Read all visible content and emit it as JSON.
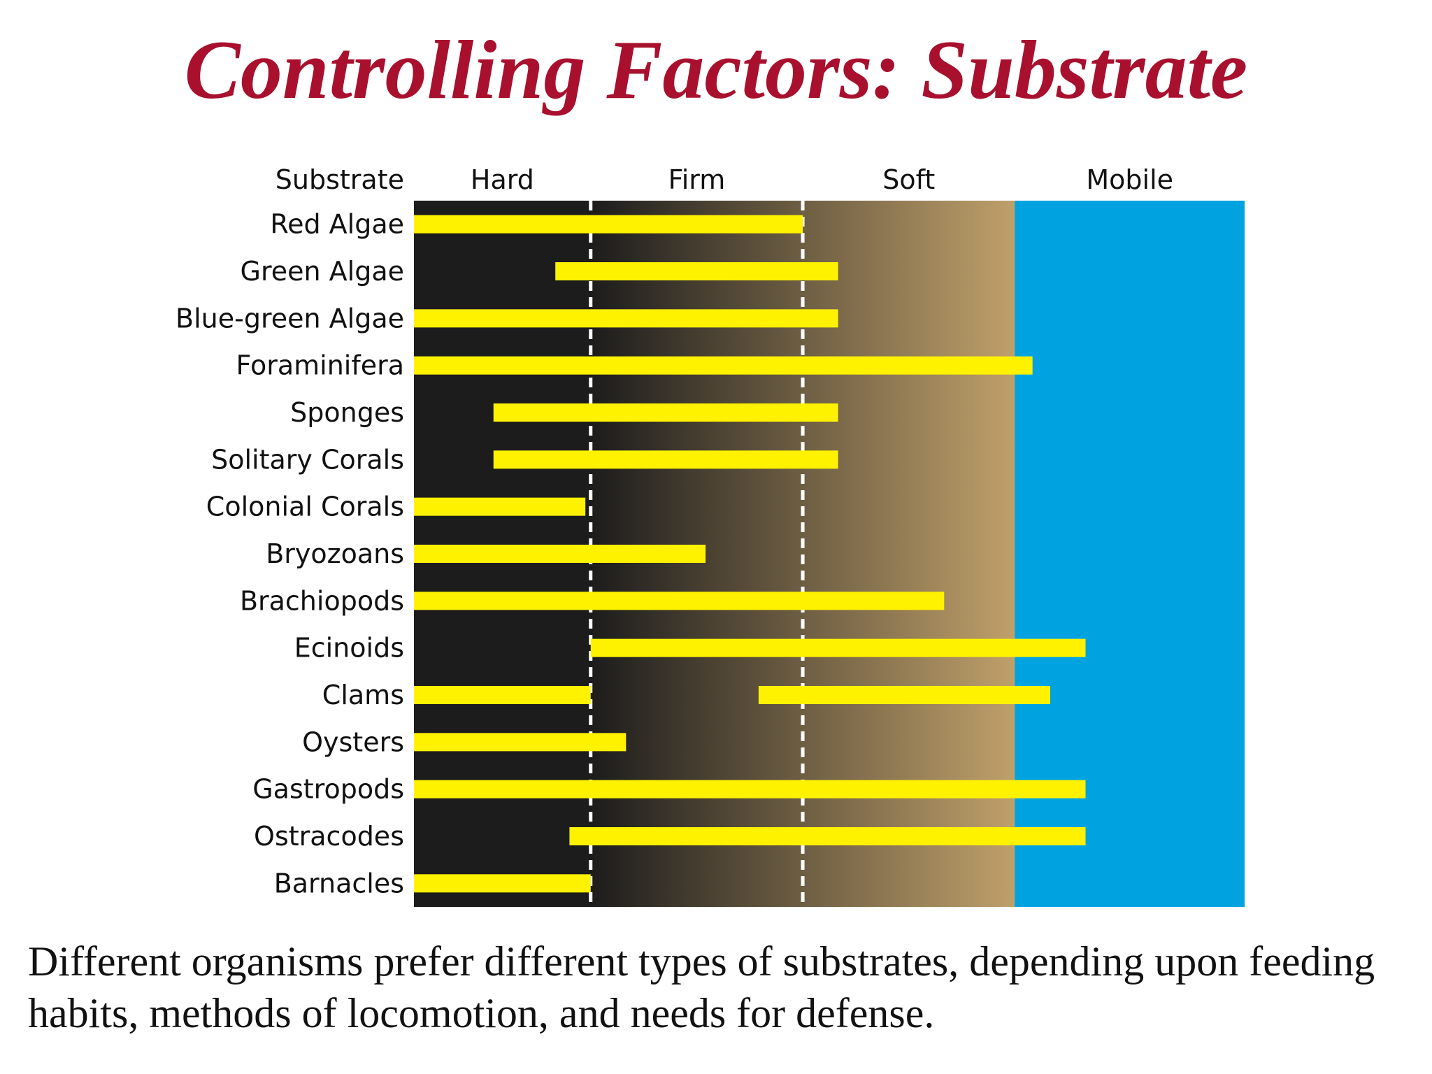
{
  "title": "Controlling Factors: Substrate",
  "caption": "Different organisms prefer different types of substrates, depending upon feeding habits, methods of locomotion, and needs for defense.",
  "chart_data": {
    "type": "bar",
    "orientation": "horizontal-range",
    "header_label": "Substrate",
    "x_zones": [
      "Hard",
      "Firm",
      "Soft",
      "Mobile"
    ],
    "x_boundaries": [
      0,
      1,
      2.2,
      3.4,
      4.7
    ],
    "categories": [
      "Red Algae",
      "Green Algae",
      "Blue-green Algae",
      "Foraminifera",
      "Sponges",
      "Solitary Corals",
      "Colonial Corals",
      "Bryozoans",
      "Brachiopods",
      "Ecinoids",
      "Clams",
      "Oysters",
      "Gastropods",
      "Ostracodes",
      "Barnacles"
    ],
    "ranges": [
      [
        [
          0,
          2.2
        ]
      ],
      [
        [
          0.8,
          2.4
        ]
      ],
      [
        [
          0,
          2.4
        ]
      ],
      [
        [
          0,
          3.5
        ]
      ],
      [
        [
          0.45,
          2.4
        ]
      ],
      [
        [
          0.45,
          2.4
        ]
      ],
      [
        [
          0,
          0.97
        ]
      ],
      [
        [
          0,
          1.65
        ]
      ],
      [
        [
          0,
          3.0
        ]
      ],
      [
        [
          1.0,
          3.8
        ]
      ],
      [
        [
          0,
          1.0
        ],
        [
          1.95,
          3.6
        ]
      ],
      [
        [
          0,
          1.2
        ]
      ],
      [
        [
          0,
          3.8
        ]
      ],
      [
        [
          0.88,
          3.8
        ]
      ],
      [
        [
          0,
          1.0
        ]
      ]
    ],
    "colors": {
      "bar": "#fff200",
      "hard": "#1c1c1c",
      "soft": "#bfa06a",
      "mobile": "#00a3e0",
      "divider": "#ffffff",
      "title": "#a8102e"
    },
    "dividers_at": [
      1,
      2.2
    ],
    "grid": false,
    "legend": "none"
  }
}
